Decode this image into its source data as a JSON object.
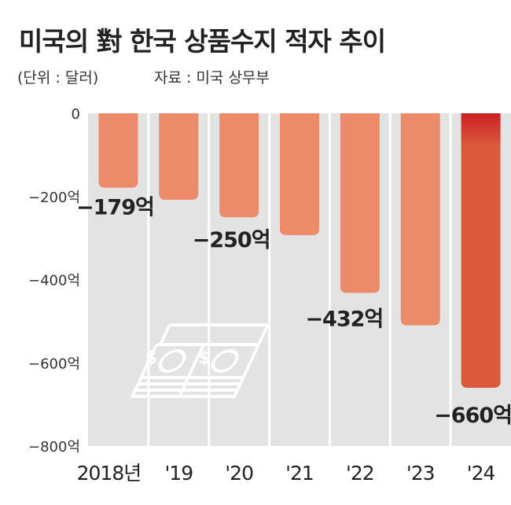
{
  "header": {
    "title": "미국의 對 한국 상품수지 적자 추이",
    "unit": "(단위 : 달러)",
    "source": "자료 : 미국 상무부"
  },
  "chart_data": {
    "type": "bar",
    "title": "미국의 對 한국 상품수지 적자 추이",
    "categories": [
      "2018년",
      "'19",
      "'20",
      "'21",
      "'22",
      "'23",
      "'24"
    ],
    "values": [
      -179,
      -208,
      -250,
      -293,
      -432,
      -510,
      -660
    ],
    "value_labels": [
      "−179억",
      "",
      "−250억",
      "",
      "−432억",
      "",
      "−660억"
    ],
    "ylim": [
      -800,
      0
    ],
    "yticks": [
      {
        "value": 0,
        "label": "0"
      },
      {
        "value": -200,
        "label": "−200억"
      },
      {
        "value": -400,
        "label": "−400억"
      },
      {
        "value": -600,
        "label": "−600억"
      },
      {
        "value": -800,
        "label": "−800억"
      }
    ],
    "grid": false,
    "colors": {
      "plot_bg": "#e3e3e4",
      "bar": "#ec8b69",
      "bar_highlight": "#da5a3b",
      "bar_highlight_top": "#cc1f24",
      "divider": "#ffffff"
    },
    "icon": "money-stack-icon"
  }
}
